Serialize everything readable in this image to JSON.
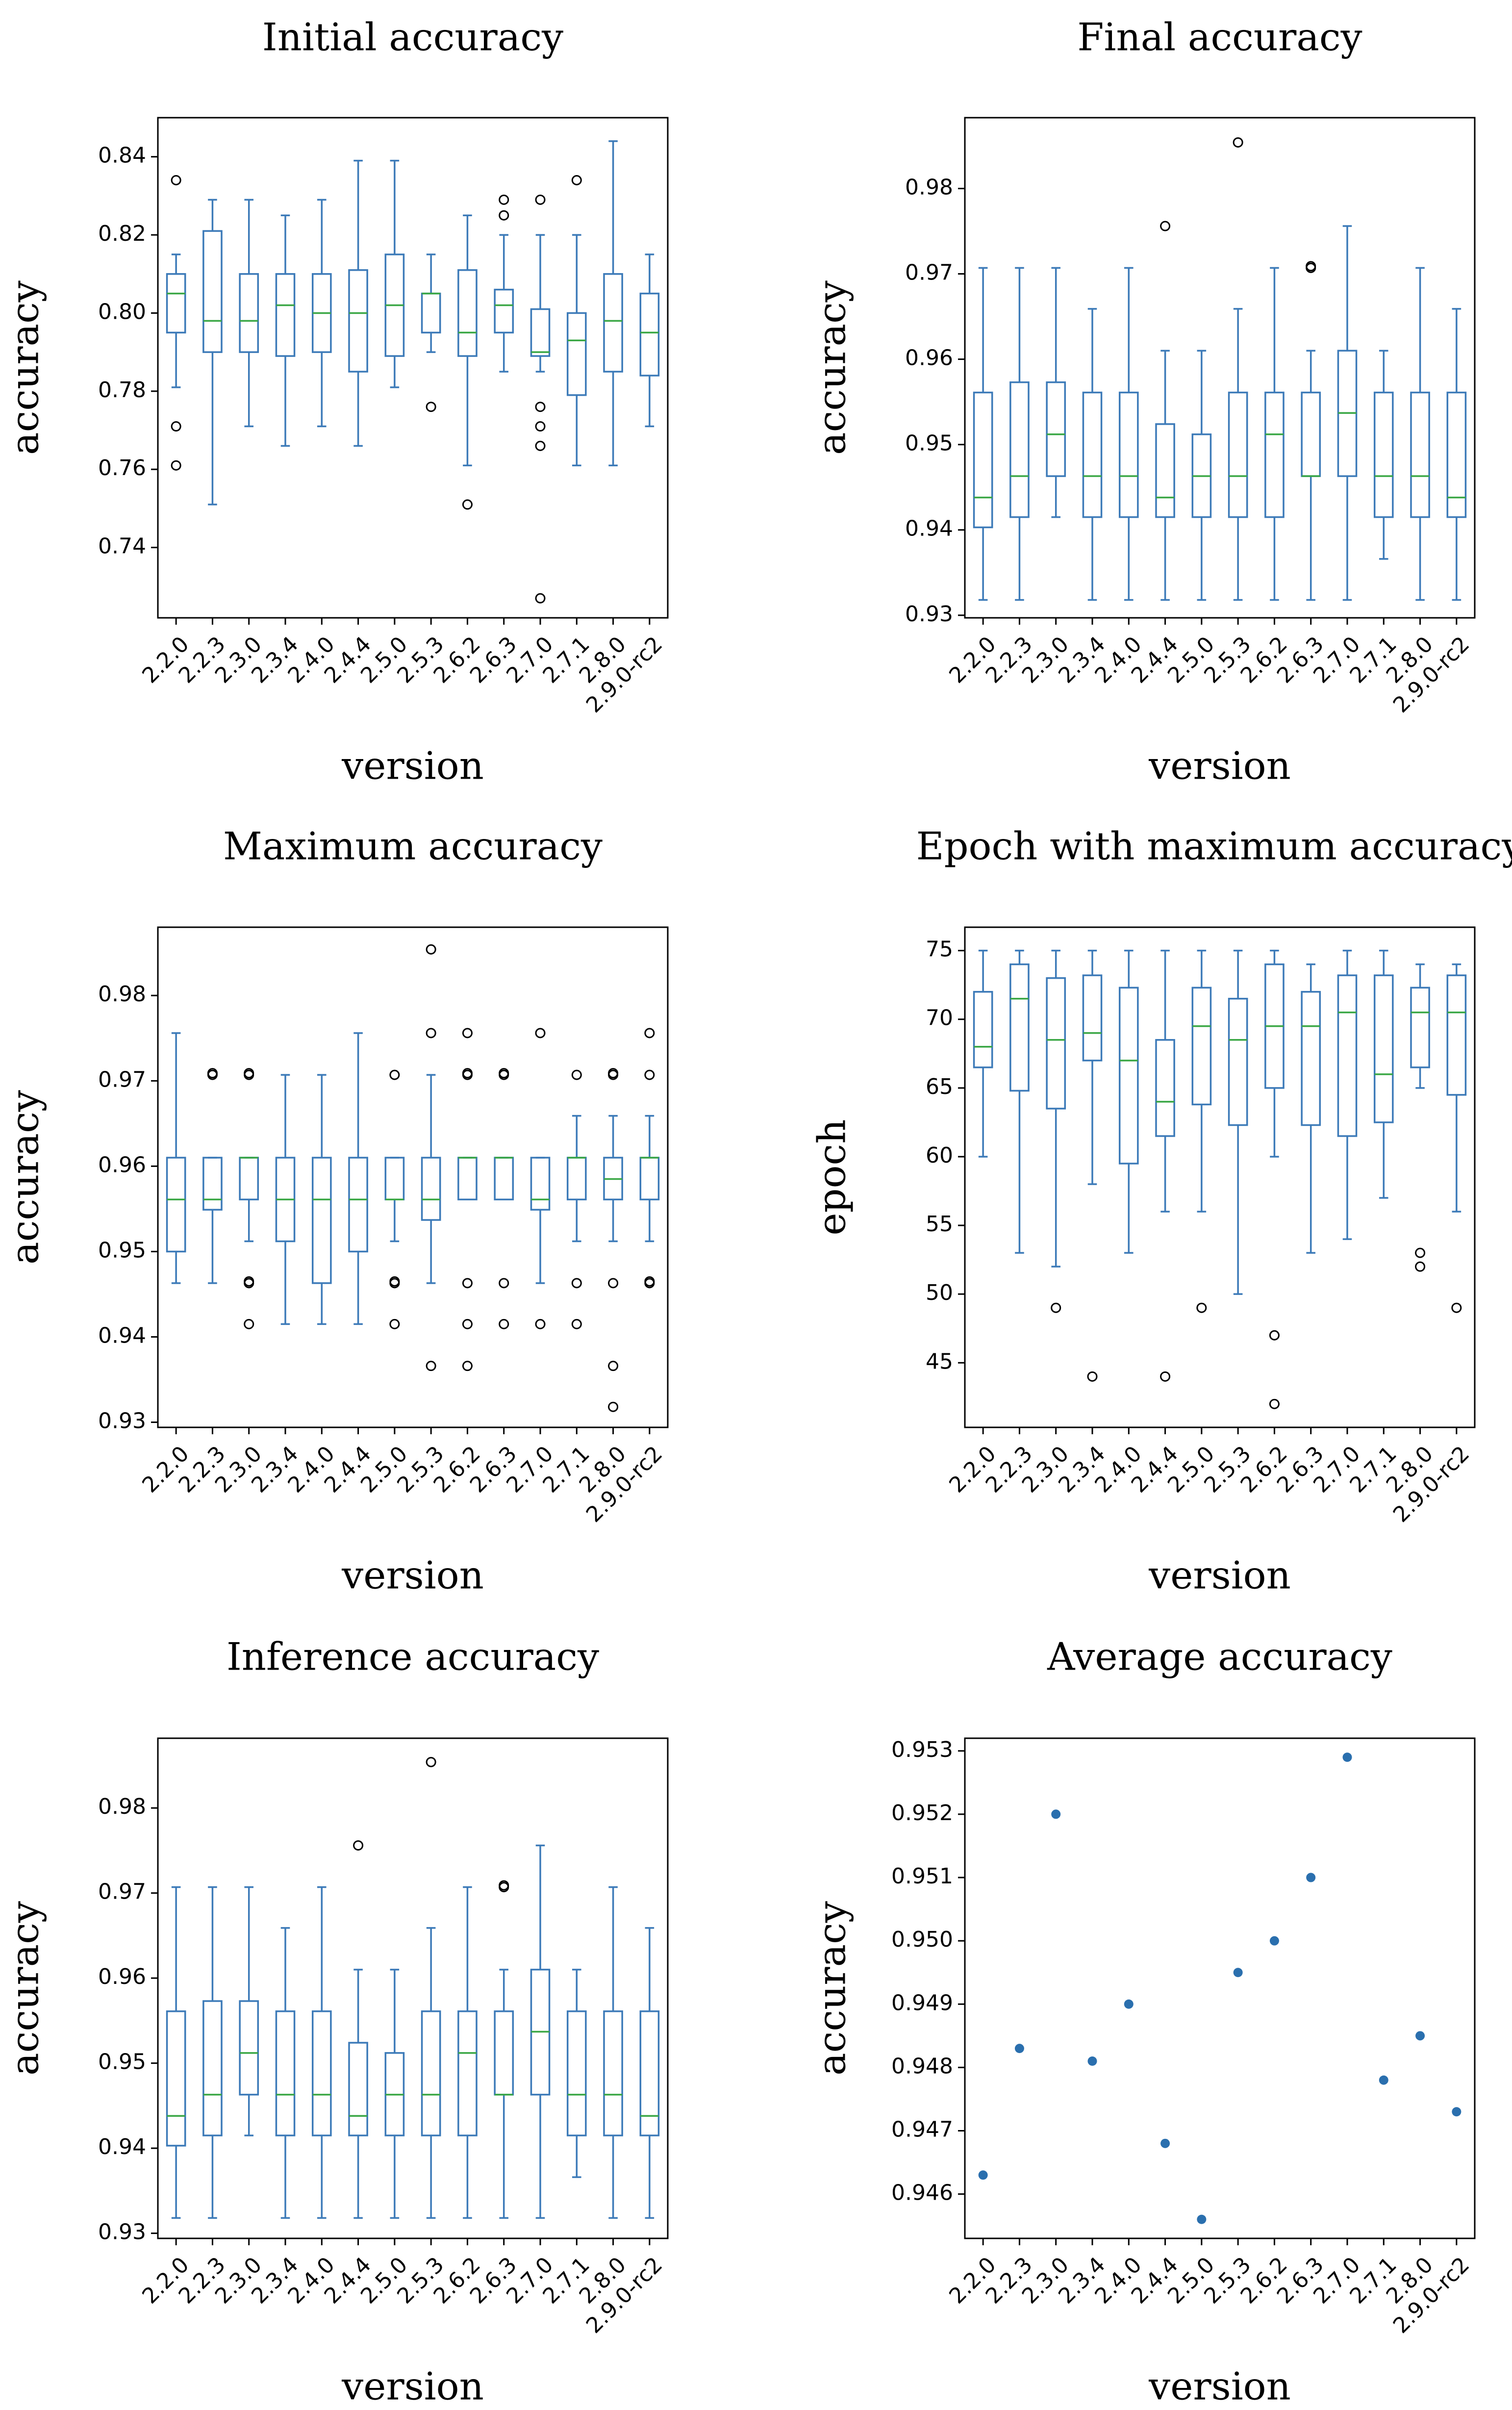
{
  "versions": [
    "2.2.0",
    "2.2.3",
    "2.3.0",
    "2.3.4",
    "2.4.0",
    "2.4.4",
    "2.5.0",
    "2.5.3",
    "2.6.2",
    "2.6.3",
    "2.7.0",
    "2.7.1",
    "2.8.0",
    "2.9.0-rc2"
  ],
  "colors": {
    "box": "#3c7ab8",
    "median": "#3aa745",
    "flier": "#000000",
    "dot": "#2a6fae"
  },
  "chart_data": [
    {
      "id": "initial",
      "type": "box",
      "title": "Initial accuracy",
      "xlabel": "version",
      "ylabel": "accuracy",
      "ylim": [
        0.722,
        0.85
      ],
      "yticks": [
        0.74,
        0.76,
        0.78,
        0.8,
        0.82,
        0.84
      ],
      "ytick_labels": [
        "0.74",
        "0.76",
        "0.78",
        "0.80",
        "0.82",
        "0.84"
      ],
      "boxes": [
        {
          "whislo": 0.781,
          "q1": 0.795,
          "med": 0.805,
          "q3": 0.81,
          "whishi": 0.815,
          "fliers": [
            0.761,
            0.771,
            0.834
          ]
        },
        {
          "whislo": 0.751,
          "q1": 0.79,
          "med": 0.798,
          "q3": 0.821,
          "whishi": 0.829,
          "fliers": []
        },
        {
          "whislo": 0.771,
          "q1": 0.79,
          "med": 0.798,
          "q3": 0.81,
          "whishi": 0.829,
          "fliers": []
        },
        {
          "whislo": 0.766,
          "q1": 0.789,
          "med": 0.802,
          "q3": 0.81,
          "whishi": 0.825,
          "fliers": []
        },
        {
          "whislo": 0.771,
          "q1": 0.79,
          "med": 0.8,
          "q3": 0.81,
          "whishi": 0.829,
          "fliers": []
        },
        {
          "whislo": 0.766,
          "q1": 0.785,
          "med": 0.8,
          "q3": 0.811,
          "whishi": 0.839,
          "fliers": []
        },
        {
          "whislo": 0.781,
          "q1": 0.789,
          "med": 0.802,
          "q3": 0.815,
          "whishi": 0.839,
          "fliers": []
        },
        {
          "whislo": 0.79,
          "q1": 0.795,
          "med": 0.805,
          "q3": 0.805,
          "whishi": 0.815,
          "fliers": [
            0.776
          ]
        },
        {
          "whislo": 0.761,
          "q1": 0.789,
          "med": 0.795,
          "q3": 0.811,
          "whishi": 0.825,
          "fliers": [
            0.751
          ]
        },
        {
          "whislo": 0.785,
          "q1": 0.795,
          "med": 0.802,
          "q3": 0.806,
          "whishi": 0.82,
          "fliers": [
            0.825,
            0.829
          ]
        },
        {
          "whislo": 0.785,
          "q1": 0.789,
          "med": 0.79,
          "q3": 0.801,
          "whishi": 0.82,
          "fliers": [
            0.727,
            0.766,
            0.771,
            0.776,
            0.829
          ]
        },
        {
          "whislo": 0.761,
          "q1": 0.779,
          "med": 0.793,
          "q3": 0.8,
          "whishi": 0.82,
          "fliers": [
            0.834
          ]
        },
        {
          "whislo": 0.761,
          "q1": 0.785,
          "med": 0.798,
          "q3": 0.81,
          "whishi": 0.844,
          "fliers": []
        },
        {
          "whislo": 0.771,
          "q1": 0.784,
          "med": 0.795,
          "q3": 0.805,
          "whishi": 0.815,
          "fliers": []
        }
      ]
    },
    {
      "id": "final",
      "type": "box",
      "title": "Final accuracy",
      "xlabel": "version",
      "ylabel": "accuracy",
      "ylim": [
        0.9297,
        0.9883
      ],
      "yticks": [
        0.93,
        0.94,
        0.95,
        0.96,
        0.97,
        0.98
      ],
      "ytick_labels": [
        "0.93",
        "0.94",
        "0.95",
        "0.96",
        "0.97",
        "0.98"
      ],
      "boxes": [
        {
          "whislo": 0.9318,
          "q1": 0.9403,
          "med": 0.9438,
          "q3": 0.9561,
          "whishi": 0.9707,
          "fliers": []
        },
        {
          "whislo": 0.9318,
          "q1": 0.9415,
          "med": 0.9463,
          "q3": 0.9573,
          "whishi": 0.9707,
          "fliers": []
        },
        {
          "whislo": 0.9415,
          "q1": 0.9463,
          "med": 0.9512,
          "q3": 0.9573,
          "whishi": 0.9707,
          "fliers": []
        },
        {
          "whislo": 0.9318,
          "q1": 0.9415,
          "med": 0.9463,
          "q3": 0.9561,
          "whishi": 0.9659,
          "fliers": []
        },
        {
          "whislo": 0.9318,
          "q1": 0.9415,
          "med": 0.9463,
          "q3": 0.9561,
          "whishi": 0.9707,
          "fliers": []
        },
        {
          "whislo": 0.9318,
          "q1": 0.9415,
          "med": 0.9438,
          "q3": 0.9524,
          "whishi": 0.961,
          "fliers": [
            0.9756
          ]
        },
        {
          "whislo": 0.9318,
          "q1": 0.9415,
          "med": 0.9463,
          "q3": 0.9512,
          "whishi": 0.961,
          "fliers": []
        },
        {
          "whislo": 0.9318,
          "q1": 0.9415,
          "med": 0.9463,
          "q3": 0.9561,
          "whishi": 0.9659,
          "fliers": [
            0.9854
          ]
        },
        {
          "whislo": 0.9318,
          "q1": 0.9415,
          "med": 0.9512,
          "q3": 0.9561,
          "whishi": 0.9707,
          "fliers": []
        },
        {
          "whislo": 0.9318,
          "q1": 0.9463,
          "med": 0.9463,
          "q3": 0.9561,
          "whishi": 0.961,
          "fliers": [
            0.9707,
            0.9709
          ]
        },
        {
          "whislo": 0.9318,
          "q1": 0.9463,
          "med": 0.9537,
          "q3": 0.961,
          "whishi": 0.9756,
          "fliers": []
        },
        {
          "whislo": 0.9366,
          "q1": 0.9415,
          "med": 0.9463,
          "q3": 0.9561,
          "whishi": 0.961,
          "fliers": []
        },
        {
          "whislo": 0.9318,
          "q1": 0.9415,
          "med": 0.9463,
          "q3": 0.9561,
          "whishi": 0.9707,
          "fliers": []
        },
        {
          "whislo": 0.9318,
          "q1": 0.9415,
          "med": 0.9438,
          "q3": 0.9561,
          "whishi": 0.9659,
          "fliers": []
        }
      ]
    },
    {
      "id": "maximum",
      "type": "box",
      "title": "Maximum accuracy",
      "xlabel": "version",
      "ylabel": "accuracy",
      "ylim": [
        0.9294,
        0.988
      ],
      "yticks": [
        0.93,
        0.94,
        0.95,
        0.96,
        0.97,
        0.98
      ],
      "ytick_labels": [
        "0.93",
        "0.94",
        "0.95",
        "0.96",
        "0.97",
        "0.98"
      ],
      "boxes": [
        {
          "whislo": 0.9463,
          "q1": 0.95,
          "med": 0.9561,
          "q3": 0.961,
          "whishi": 0.9756,
          "fliers": []
        },
        {
          "whislo": 0.9463,
          "q1": 0.9549,
          "med": 0.9561,
          "q3": 0.961,
          "whishi": 0.961,
          "fliers": [
            0.9707,
            0.9709
          ]
        },
        {
          "whislo": 0.9512,
          "q1": 0.9561,
          "med": 0.961,
          "q3": 0.961,
          "whishi": 0.961,
          "fliers": [
            0.9415,
            0.9463,
            0.9465,
            0.9707,
            0.9709
          ]
        },
        {
          "whislo": 0.9415,
          "q1": 0.9512,
          "med": 0.9561,
          "q3": 0.961,
          "whishi": 0.9707,
          "fliers": []
        },
        {
          "whislo": 0.9415,
          "q1": 0.9463,
          "med": 0.9561,
          "q3": 0.961,
          "whishi": 0.9707,
          "fliers": []
        },
        {
          "whislo": 0.9415,
          "q1": 0.95,
          "med": 0.9561,
          "q3": 0.961,
          "whishi": 0.9756,
          "fliers": []
        },
        {
          "whislo": 0.9512,
          "q1": 0.9561,
          "med": 0.9561,
          "q3": 0.961,
          "whishi": 0.961,
          "fliers": [
            0.9415,
            0.9463,
            0.9465,
            0.9707
          ]
        },
        {
          "whislo": 0.9463,
          "q1": 0.9537,
          "med": 0.9561,
          "q3": 0.961,
          "whishi": 0.9707,
          "fliers": [
            0.9366,
            0.9756,
            0.9854
          ]
        },
        {
          "whislo": 0.9561,
          "q1": 0.9561,
          "med": 0.961,
          "q3": 0.961,
          "whishi": 0.961,
          "fliers": [
            0.9366,
            0.9415,
            0.9463,
            0.9707,
            0.9709,
            0.9756
          ]
        },
        {
          "whislo": 0.9561,
          "q1": 0.9561,
          "med": 0.961,
          "q3": 0.961,
          "whishi": 0.961,
          "fliers": [
            0.9415,
            0.9463,
            0.9707,
            0.9709
          ]
        },
        {
          "whislo": 0.9463,
          "q1": 0.9549,
          "med": 0.9561,
          "q3": 0.961,
          "whishi": 0.961,
          "fliers": [
            0.9415,
            0.9756
          ]
        },
        {
          "whislo": 0.9512,
          "q1": 0.9561,
          "med": 0.961,
          "q3": 0.961,
          "whishi": 0.9659,
          "fliers": [
            0.9415,
            0.9463,
            0.9707
          ]
        },
        {
          "whislo": 0.9512,
          "q1": 0.9561,
          "med": 0.9585,
          "q3": 0.961,
          "whishi": 0.9659,
          "fliers": [
            0.9318,
            0.9366,
            0.9463,
            0.9707,
            0.9709
          ]
        },
        {
          "whislo": 0.9512,
          "q1": 0.9561,
          "med": 0.961,
          "q3": 0.961,
          "whishi": 0.9659,
          "fliers": [
            0.9463,
            0.9465,
            0.9707,
            0.9756
          ]
        }
      ]
    },
    {
      "id": "epoch",
      "type": "box",
      "title": "Epoch with maximum accuracy",
      "xlabel": "version",
      "ylabel": "epoch",
      "ylim": [
        40.3,
        76.7
      ],
      "yticks": [
        45,
        50,
        55,
        60,
        65,
        70,
        75
      ],
      "ytick_labels": [
        "45",
        "50",
        "55",
        "60",
        "65",
        "70",
        "75"
      ],
      "boxes": [
        {
          "whislo": 60,
          "q1": 66.5,
          "med": 68,
          "q3": 72,
          "whishi": 75,
          "fliers": []
        },
        {
          "whislo": 53,
          "q1": 64.8,
          "med": 71.5,
          "q3": 74,
          "whishi": 75,
          "fliers": []
        },
        {
          "whislo": 52,
          "q1": 63.5,
          "med": 68.5,
          "q3": 73,
          "whishi": 75,
          "fliers": [
            49
          ]
        },
        {
          "whislo": 58,
          "q1": 67,
          "med": 69,
          "q3": 73.2,
          "whishi": 75,
          "fliers": [
            44
          ]
        },
        {
          "whislo": 53,
          "q1": 59.5,
          "med": 67,
          "q3": 72.3,
          "whishi": 75,
          "fliers": []
        },
        {
          "whislo": 56,
          "q1": 61.5,
          "med": 64,
          "q3": 68.5,
          "whishi": 75,
          "fliers": [
            44
          ]
        },
        {
          "whislo": 56,
          "q1": 63.8,
          "med": 69.5,
          "q3": 72.3,
          "whishi": 75,
          "fliers": [
            49
          ]
        },
        {
          "whislo": 50,
          "q1": 62.3,
          "med": 68.5,
          "q3": 71.5,
          "whishi": 75,
          "fliers": []
        },
        {
          "whislo": 60,
          "q1": 65,
          "med": 69.5,
          "q3": 74,
          "whishi": 75,
          "fliers": [
            42,
            47
          ]
        },
        {
          "whislo": 53,
          "q1": 62.3,
          "med": 69.5,
          "q3": 72,
          "whishi": 74,
          "fliers": []
        },
        {
          "whislo": 54,
          "q1": 61.5,
          "med": 70.5,
          "q3": 73.2,
          "whishi": 75,
          "fliers": []
        },
        {
          "whislo": 57,
          "q1": 62.5,
          "med": 66,
          "q3": 73.2,
          "whishi": 75,
          "fliers": []
        },
        {
          "whislo": 65,
          "q1": 66.5,
          "med": 70.5,
          "q3": 72.3,
          "whishi": 74,
          "fliers": [
            52,
            53
          ]
        },
        {
          "whislo": 56,
          "q1": 64.5,
          "med": 70.5,
          "q3": 73.2,
          "whishi": 74,
          "fliers": [
            49
          ]
        }
      ]
    },
    {
      "id": "inference",
      "type": "box",
      "title": "Inference accuracy",
      "xlabel": "version",
      "ylabel": "accuracy",
      "ylim": [
        0.9294,
        0.9882
      ],
      "yticks": [
        0.93,
        0.94,
        0.95,
        0.96,
        0.97,
        0.98
      ],
      "ytick_labels": [
        "0.93",
        "0.94",
        "0.95",
        "0.96",
        "0.97",
        "0.98"
      ],
      "boxes": [
        {
          "whislo": 0.9318,
          "q1": 0.9403,
          "med": 0.9438,
          "q3": 0.9561,
          "whishi": 0.9707,
          "fliers": []
        },
        {
          "whislo": 0.9318,
          "q1": 0.9415,
          "med": 0.9463,
          "q3": 0.9573,
          "whishi": 0.9707,
          "fliers": []
        },
        {
          "whislo": 0.9415,
          "q1": 0.9463,
          "med": 0.9512,
          "q3": 0.9573,
          "whishi": 0.9707,
          "fliers": []
        },
        {
          "whislo": 0.9318,
          "q1": 0.9415,
          "med": 0.9463,
          "q3": 0.9561,
          "whishi": 0.9659,
          "fliers": []
        },
        {
          "whislo": 0.9318,
          "q1": 0.9415,
          "med": 0.9463,
          "q3": 0.9561,
          "whishi": 0.9707,
          "fliers": []
        },
        {
          "whislo": 0.9318,
          "q1": 0.9415,
          "med": 0.9438,
          "q3": 0.9524,
          "whishi": 0.961,
          "fliers": [
            0.9756
          ]
        },
        {
          "whislo": 0.9318,
          "q1": 0.9415,
          "med": 0.9463,
          "q3": 0.9512,
          "whishi": 0.961,
          "fliers": []
        },
        {
          "whislo": 0.9318,
          "q1": 0.9415,
          "med": 0.9463,
          "q3": 0.9561,
          "whishi": 0.9659,
          "fliers": [
            0.9854
          ]
        },
        {
          "whislo": 0.9318,
          "q1": 0.9415,
          "med": 0.9512,
          "q3": 0.9561,
          "whishi": 0.9707,
          "fliers": []
        },
        {
          "whislo": 0.9318,
          "q1": 0.9463,
          "med": 0.9463,
          "q3": 0.9561,
          "whishi": 0.961,
          "fliers": [
            0.9707,
            0.9709
          ]
        },
        {
          "whislo": 0.9318,
          "q1": 0.9463,
          "med": 0.9537,
          "q3": 0.961,
          "whishi": 0.9756,
          "fliers": []
        },
        {
          "whislo": 0.9366,
          "q1": 0.9415,
          "med": 0.9463,
          "q3": 0.9561,
          "whishi": 0.961,
          "fliers": []
        },
        {
          "whislo": 0.9318,
          "q1": 0.9415,
          "med": 0.9463,
          "q3": 0.9561,
          "whishi": 0.9707,
          "fliers": []
        },
        {
          "whislo": 0.9318,
          "q1": 0.9415,
          "med": 0.9438,
          "q3": 0.9561,
          "whishi": 0.9659,
          "fliers": []
        }
      ]
    },
    {
      "id": "average",
      "type": "scatter",
      "title": "Average accuracy",
      "xlabel": "version",
      "ylabel": "accuracy",
      "ylim": [
        0.9453,
        0.9532
      ],
      "yticks": [
        0.946,
        0.947,
        0.948,
        0.949,
        0.95,
        0.951,
        0.952,
        0.953
      ],
      "ytick_labels": [
        "0.946",
        "0.947",
        "0.948",
        "0.949",
        "0.950",
        "0.951",
        "0.952",
        "0.953"
      ],
      "values": [
        0.9463,
        0.9483,
        0.952,
        0.9481,
        0.949,
        0.9468,
        0.9456,
        0.9495,
        0.95,
        0.951,
        0.9529,
        0.9478,
        0.9485,
        0.9473
      ]
    }
  ]
}
